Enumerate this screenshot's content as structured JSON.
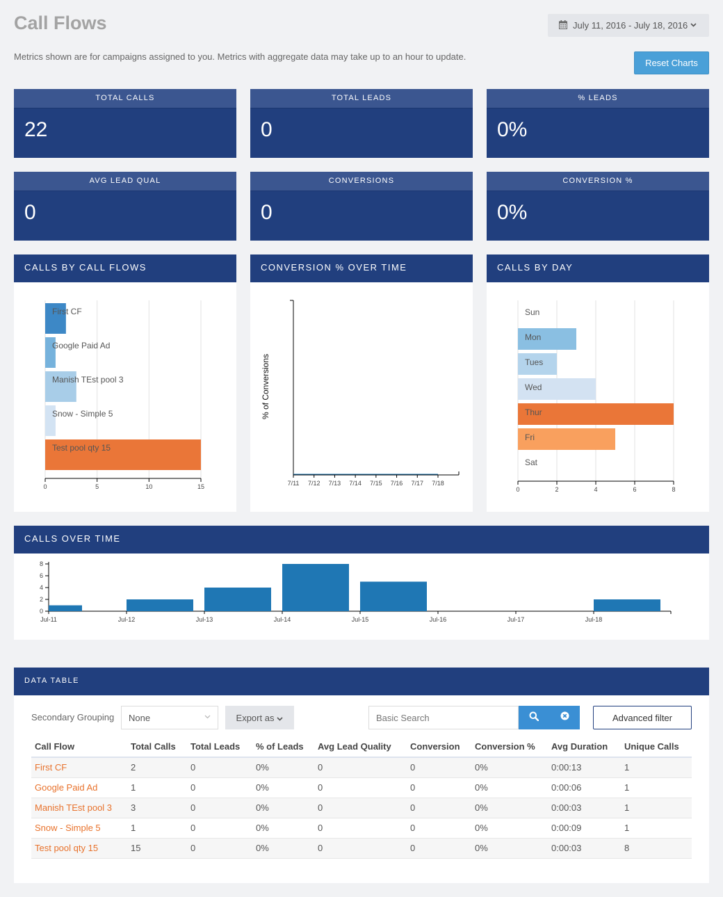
{
  "header": {
    "title": "Call Flows",
    "date_range": "July 11, 2016 - July 18, 2016",
    "notice": "Metrics shown are for campaigns assigned to you. Metrics with aggregate data may take up to an hour to update.",
    "reset_label": "Reset Charts"
  },
  "stats": [
    {
      "label": "TOTAL CALLS",
      "value": "22"
    },
    {
      "label": "TOTAL LEADS",
      "value": "0"
    },
    {
      "label": "% LEADS",
      "value": "0%"
    },
    {
      "label": "AVG LEAD QUAL",
      "value": "0"
    },
    {
      "label": "CONVERSIONS",
      "value": "0"
    },
    {
      "label": "CONVERSION %",
      "value": "0%"
    }
  ],
  "panels": {
    "calls_by_flow": "CALLS BY CALL FLOWS",
    "conversion_over_time": "CONVERSION % OVER TIME",
    "calls_by_day": "CALLS BY DAY",
    "calls_over_time": "CALLS OVER TIME",
    "data_table": "DATA TABLE"
  },
  "colors": {
    "navy": "#213f7e",
    "accent_orange": "#e8722c",
    "bar_blue": "#1f77b4"
  },
  "chart_data": [
    {
      "id": "calls_by_flow",
      "type": "bar",
      "orientation": "horizontal",
      "categories": [
        "First CF",
        "Google Paid Ad",
        "Manish TEst pool 3",
        "Snow - Simple 5",
        "Test pool qty 15"
      ],
      "values": [
        2,
        1,
        3,
        1,
        15
      ],
      "colors": [
        "#3d88c6",
        "#76b2dc",
        "#a8cde8",
        "#d3e3f3",
        "#ea7638"
      ],
      "xticks": [
        0,
        5,
        10,
        15
      ],
      "xlim": [
        0,
        15
      ]
    },
    {
      "id": "conversion_over_time",
      "type": "line",
      "x": [
        "7/11",
        "7/12",
        "7/13",
        "7/14",
        "7/15",
        "7/16",
        "7/17",
        "7/18"
      ],
      "values": [
        0,
        0,
        0,
        0,
        0,
        0,
        0,
        0
      ],
      "ylabel": "% of Conversions"
    },
    {
      "id": "calls_by_day",
      "type": "bar",
      "orientation": "horizontal",
      "categories": [
        "Sun",
        "Mon",
        "Tues",
        "Wed",
        "Thur",
        "Fri",
        "Sat"
      ],
      "values": [
        0,
        3,
        2,
        4,
        8,
        5,
        0
      ],
      "colors": [
        "#ffffff",
        "#8abfe2",
        "#b4d4ec",
        "#d3e2f2",
        "#ea7638",
        "#f9a05e",
        "#ffffff"
      ],
      "xticks": [
        0,
        2,
        4,
        6,
        8
      ],
      "xlim": [
        0,
        8
      ]
    },
    {
      "id": "calls_over_time",
      "type": "bar",
      "categories": [
        "Jul-11",
        "Jul-12",
        "Jul-13",
        "Jul-14",
        "Jul-15",
        "Jul-16",
        "Jul-17",
        "Jul-18"
      ],
      "values": [
        1,
        2,
        4,
        8,
        5,
        0,
        0,
        2
      ],
      "yticks": [
        0,
        2,
        4,
        6,
        8
      ],
      "ylim": [
        0,
        8
      ]
    }
  ],
  "table_controls": {
    "secondary_grouping_label": "Secondary Grouping",
    "grouping_value": "None",
    "export_label": "Export as",
    "search_placeholder": "Basic Search",
    "advanced_filter_label": "Advanced filter"
  },
  "table": {
    "columns": [
      "Call Flow",
      "Total Calls",
      "Total Leads",
      "% of Leads",
      "Avg Lead Quality",
      "Conversion",
      "Conversion %",
      "Avg Duration",
      "Unique Calls"
    ],
    "rows": [
      [
        "First CF",
        "2",
        "0",
        "0%",
        "0",
        "0",
        "0%",
        "0:00:13",
        "1"
      ],
      [
        "Google Paid Ad",
        "1",
        "0",
        "0%",
        "0",
        "0",
        "0%",
        "0:00:06",
        "1"
      ],
      [
        "Manish TEst pool 3",
        "3",
        "0",
        "0%",
        "0",
        "0",
        "0%",
        "0:00:03",
        "1"
      ],
      [
        "Snow - Simple 5",
        "1",
        "0",
        "0%",
        "0",
        "0",
        "0%",
        "0:00:09",
        "1"
      ],
      [
        "Test pool qty 15",
        "15",
        "0",
        "0%",
        "0",
        "0",
        "0%",
        "0:00:03",
        "8"
      ]
    ]
  }
}
